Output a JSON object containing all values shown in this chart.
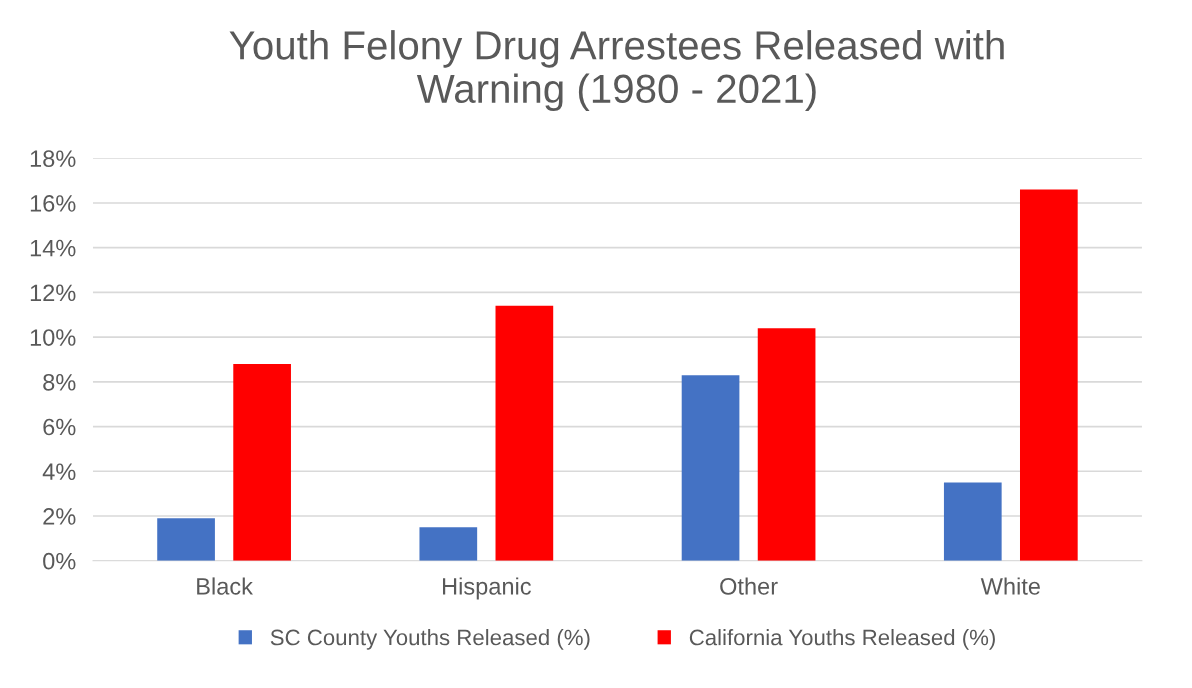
{
  "chart_data": {
    "type": "bar",
    "title": "Youth Felony Drug Arrestees Released with\nWarning (1980 - 2021)",
    "categories": [
      "Black",
      "Hispanic",
      "Other",
      "White"
    ],
    "series": [
      {
        "name": "SC County Youths Released (%)",
        "color": "#4472c4",
        "values": [
          1.9,
          1.5,
          8.3,
          3.5
        ]
      },
      {
        "name": "California Youths Released (%)",
        "color": "#ff0000",
        "values": [
          8.8,
          11.4,
          10.4,
          16.6
        ]
      }
    ],
    "ylim": [
      0,
      18
    ],
    "yticks": [
      {
        "value": 0,
        "label": "0%"
      },
      {
        "value": 2,
        "label": "2%"
      },
      {
        "value": 4,
        "label": "4%"
      },
      {
        "value": 6,
        "label": "6%"
      },
      {
        "value": 8,
        "label": "8%"
      },
      {
        "value": 10,
        "label": "10%"
      },
      {
        "value": 12,
        "label": "12%"
      },
      {
        "value": 14,
        "label": "14%"
      },
      {
        "value": 16,
        "label": "16%"
      },
      {
        "value": 18,
        "label": "18%"
      }
    ],
    "grid": "y",
    "legend": "bottom"
  }
}
